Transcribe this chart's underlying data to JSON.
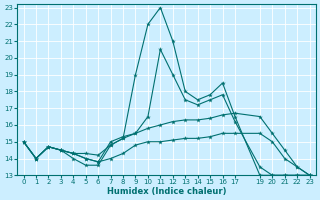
{
  "xlabel": "Humidex (Indice chaleur)",
  "xlim": [
    -0.5,
    23.5
  ],
  "ylim": [
    13,
    23.2
  ],
  "yticks": [
    13,
    14,
    15,
    16,
    17,
    18,
    19,
    20,
    21,
    22,
    23
  ],
  "xtick_positions": [
    0,
    1,
    2,
    3,
    4,
    5,
    6,
    7,
    8,
    9,
    10,
    11,
    12,
    13,
    14,
    15,
    16,
    17,
    19,
    20,
    21,
    22,
    23
  ],
  "xtick_labels": [
    "0",
    "1",
    "2",
    "3",
    "4",
    "5",
    "6",
    "7",
    "8",
    "9",
    "10",
    "11",
    "12",
    "13",
    "14",
    "15",
    "16",
    "17",
    "19",
    "20",
    "21",
    "22",
    "23"
  ],
  "bg_color": "#cceeff",
  "line_color": "#007070",
  "grid_color": "#ffffff",
  "lines": [
    {
      "x": [
        0,
        1,
        2,
        3,
        4,
        5,
        6,
        7,
        8,
        9,
        10,
        11,
        12,
        13,
        14,
        15,
        16,
        17,
        19,
        20,
        21,
        22,
        23
      ],
      "y": [
        15,
        14,
        14.7,
        14.5,
        14.0,
        13.6,
        13.6,
        14.8,
        15.2,
        19.0,
        22.0,
        23.0,
        21.0,
        18.0,
        17.5,
        17.8,
        18.5,
        16.5,
        13.0,
        13.0,
        13.0,
        13.0,
        13.0
      ]
    },
    {
      "x": [
        0,
        1,
        2,
        3,
        4,
        5,
        6,
        7,
        8,
        9,
        10,
        11,
        12,
        13,
        14,
        15,
        16,
        17,
        19,
        20,
        21,
        22,
        23
      ],
      "y": [
        15,
        14,
        14.7,
        14.5,
        14.3,
        14.0,
        13.8,
        15.0,
        15.3,
        15.5,
        16.5,
        20.5,
        19.0,
        17.5,
        17.2,
        17.5,
        17.8,
        16.2,
        13.5,
        13.0,
        13.0,
        13.0,
        13.0
      ]
    },
    {
      "x": [
        0,
        1,
        2,
        3,
        4,
        5,
        6,
        7,
        8,
        9,
        10,
        11,
        12,
        13,
        14,
        15,
        16,
        17,
        19,
        20,
        21,
        22,
        23
      ],
      "y": [
        15,
        14,
        14.7,
        14.5,
        14.3,
        14.3,
        14.2,
        14.8,
        15.2,
        15.5,
        15.8,
        16.0,
        16.2,
        16.3,
        16.3,
        16.4,
        16.6,
        16.7,
        16.5,
        15.5,
        14.5,
        13.5,
        13.0
      ]
    },
    {
      "x": [
        0,
        1,
        2,
        3,
        4,
        5,
        6,
        7,
        8,
        9,
        10,
        11,
        12,
        13,
        14,
        15,
        16,
        17,
        19,
        20,
        21,
        22,
        23
      ],
      "y": [
        15,
        14,
        14.7,
        14.5,
        14.3,
        14.0,
        13.8,
        14.0,
        14.3,
        14.8,
        15.0,
        15.0,
        15.1,
        15.2,
        15.2,
        15.3,
        15.5,
        15.5,
        15.5,
        15.0,
        14.0,
        13.5,
        13.0
      ]
    }
  ]
}
